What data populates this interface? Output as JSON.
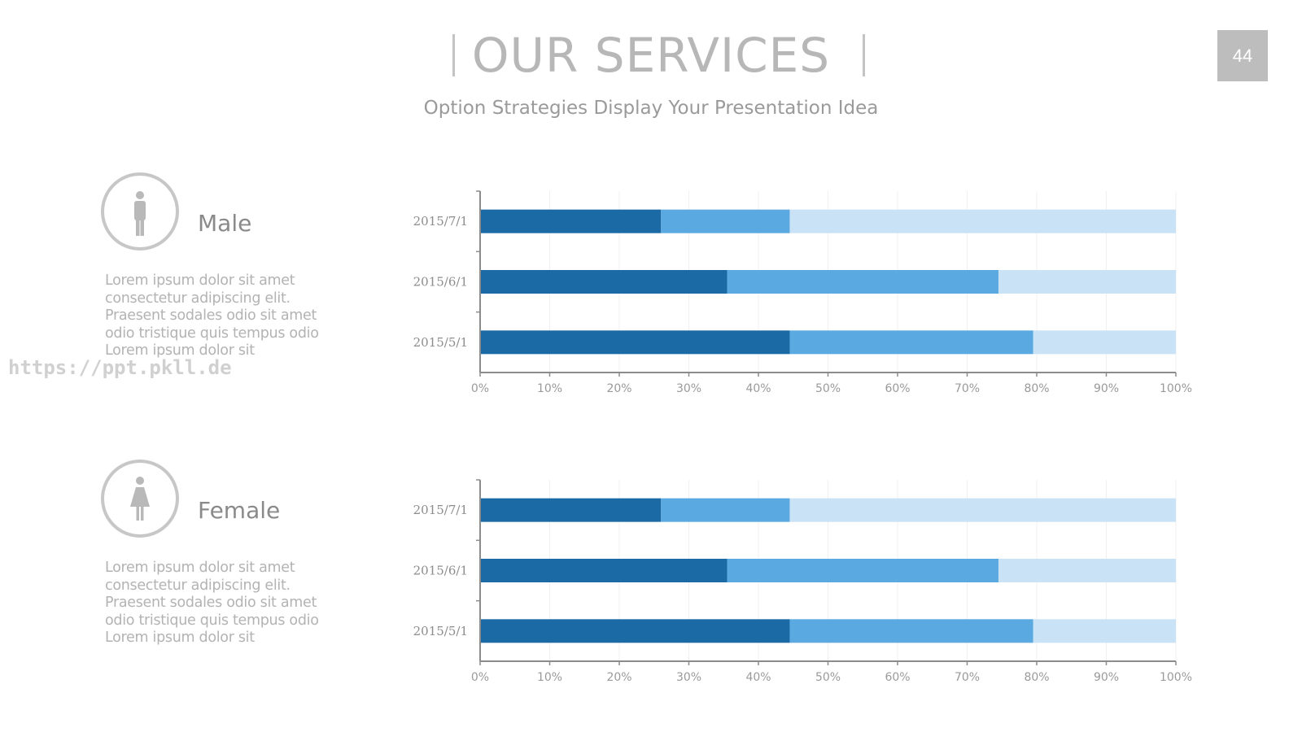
{
  "header": {
    "title": "OUR SERVICES",
    "subtitle": "Option Strategies Display Your Presentation Idea",
    "page_number": "44"
  },
  "sections": [
    {
      "label": "Male",
      "icon": "male-icon",
      "paragraph": [
        "Lorem ipsum dolor sit amet",
        "consectetur adipiscing elit.",
        "Praesent sodales odio sit amet",
        "odio tristique quis tempus odio",
        "Lorem ipsum dolor sit"
      ]
    },
    {
      "label": "Female",
      "icon": "female-icon",
      "paragraph": [
        "Lorem ipsum dolor sit amet",
        "consectetur adipiscing elit.",
        "Praesent sodales odio sit amet",
        "odio tristique quis tempus odio",
        "Lorem ipsum dolor sit"
      ]
    }
  ],
  "watermark": "https://ppt.pkll.de",
  "colors": {
    "dark": "#1b6aa5",
    "mid": "#5aa9e0",
    "light": "#c9e2f5",
    "axis": "#8c8c8c",
    "grid": "#f0f0f0"
  },
  "chart_data": [
    {
      "type": "bar",
      "orientation": "horizontal",
      "stacked": "percent",
      "categories": [
        "2015/7/1",
        "2015/6/1",
        "2015/5/1"
      ],
      "series": [
        {
          "values": [
            26,
            35.5,
            44.5
          ]
        },
        {
          "values": [
            18.5,
            39,
            35
          ]
        },
        {
          "values": [
            55.5,
            25.5,
            20.5
          ]
        }
      ],
      "xlim": [
        0,
        100
      ],
      "xticks": [
        "0%",
        "10%",
        "20%",
        "30%",
        "40%",
        "50%",
        "60%",
        "70%",
        "80%",
        "90%",
        "100%"
      ],
      "grid": true,
      "legend": "none"
    },
    {
      "type": "bar",
      "orientation": "horizontal",
      "stacked": "percent",
      "categories": [
        "2015/7/1",
        "2015/6/1",
        "2015/5/1"
      ],
      "series": [
        {
          "values": [
            26,
            35.5,
            44.5
          ]
        },
        {
          "values": [
            18.5,
            39,
            35
          ]
        },
        {
          "values": [
            55.5,
            25.5,
            20.5
          ]
        }
      ],
      "xlim": [
        0,
        100
      ],
      "xticks": [
        "0%",
        "10%",
        "20%",
        "30%",
        "40%",
        "50%",
        "60%",
        "70%",
        "80%",
        "90%",
        "100%"
      ],
      "grid": true,
      "legend": "none"
    }
  ]
}
